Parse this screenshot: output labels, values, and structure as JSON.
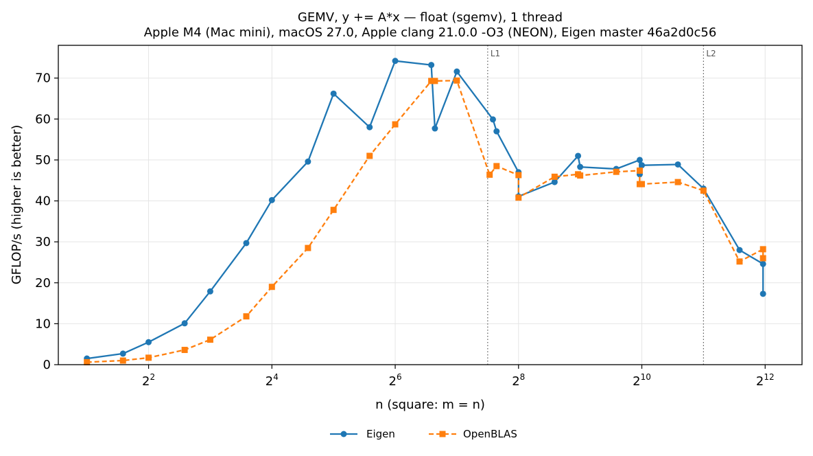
{
  "chart_data": {
    "type": "line",
    "title": "GEMV, y += A*x — float (sgemv), 1 thread",
    "subtitle": "Apple M4 (Mac mini), macOS 27.0, Apple clang 21.0.0 -O3 (NEON), Eigen master 46a2d0c56",
    "xlabel": "n (square: m = n)",
    "ylabel": "GFLOP/s (higher is better)",
    "x_scale": "log2",
    "xlim": [
      1.45,
      6200
    ],
    "ylim": [
      0,
      78
    ],
    "x_ticks": [
      {
        "base": "2",
        "exp": "2",
        "value": 4
      },
      {
        "base": "2",
        "exp": "4",
        "value": 16
      },
      {
        "base": "2",
        "exp": "6",
        "value": 64
      },
      {
        "base": "2",
        "exp": "8",
        "value": 256
      },
      {
        "base": "2",
        "exp": "10",
        "value": 1024
      },
      {
        "base": "2",
        "exp": "12",
        "value": 4096
      }
    ],
    "y_ticks": [
      0,
      10,
      20,
      30,
      40,
      50,
      60,
      70
    ],
    "grid": true,
    "legend_position": "bottom-center",
    "vlines": [
      {
        "label": "L1",
        "x": 181
      },
      {
        "label": "L2",
        "x": 2048
      }
    ],
    "series": [
      {
        "name": "Eigen",
        "color": "#1f77b4",
        "marker": "circle",
        "linestyle": "solid",
        "points": [
          [
            2,
            1.5
          ],
          [
            3,
            2.7
          ],
          [
            4,
            5.5
          ],
          [
            6,
            10.1
          ],
          [
            8,
            17.9
          ],
          [
            12,
            29.7
          ],
          [
            16,
            40.2
          ],
          [
            24,
            49.6
          ],
          [
            32,
            66.2
          ],
          [
            48,
            58.0
          ],
          [
            64,
            74.2
          ],
          [
            96,
            73.2
          ],
          [
            100,
            57.7
          ],
          [
            128,
            71.6
          ],
          [
            192,
            59.9
          ],
          [
            200,
            57.0
          ],
          [
            256,
            47.0
          ],
          [
            256,
            41.1
          ],
          [
            384,
            44.6
          ],
          [
            500,
            51.0
          ],
          [
            512,
            48.3
          ],
          [
            768,
            47.8
          ],
          [
            1000,
            50.0
          ],
          [
            1000,
            46.5
          ],
          [
            1024,
            48.7
          ],
          [
            1536,
            48.9
          ],
          [
            2048,
            43.0
          ],
          [
            3072,
            28.0
          ],
          [
            4000,
            24.6
          ],
          [
            4000,
            17.3
          ]
        ]
      },
      {
        "name": "OpenBLAS",
        "color": "#ff7f0e",
        "marker": "square",
        "linestyle": "dashed",
        "points": [
          [
            2,
            0.6
          ],
          [
            3,
            1.0
          ],
          [
            4,
            1.7
          ],
          [
            6,
            3.6
          ],
          [
            8,
            6.1
          ],
          [
            12,
            11.8
          ],
          [
            16,
            19.0
          ],
          [
            24,
            28.5
          ],
          [
            32,
            37.8
          ],
          [
            48,
            51.0
          ],
          [
            64,
            58.7
          ],
          [
            96,
            69.3
          ],
          [
            100,
            69.3
          ],
          [
            128,
            69.4
          ],
          [
            185,
            46.4
          ],
          [
            200,
            48.5
          ],
          [
            256,
            46.3
          ],
          [
            256,
            40.8
          ],
          [
            384,
            45.9
          ],
          [
            500,
            46.5
          ],
          [
            512,
            46.2
          ],
          [
            768,
            47.1
          ],
          [
            1000,
            47.4
          ],
          [
            1000,
            44.1
          ],
          [
            1024,
            44.1
          ],
          [
            1536,
            44.6
          ],
          [
            2048,
            42.5
          ],
          [
            3072,
            25.2
          ],
          [
            4000,
            28.2
          ],
          [
            4000,
            26.0
          ]
        ]
      }
    ]
  }
}
